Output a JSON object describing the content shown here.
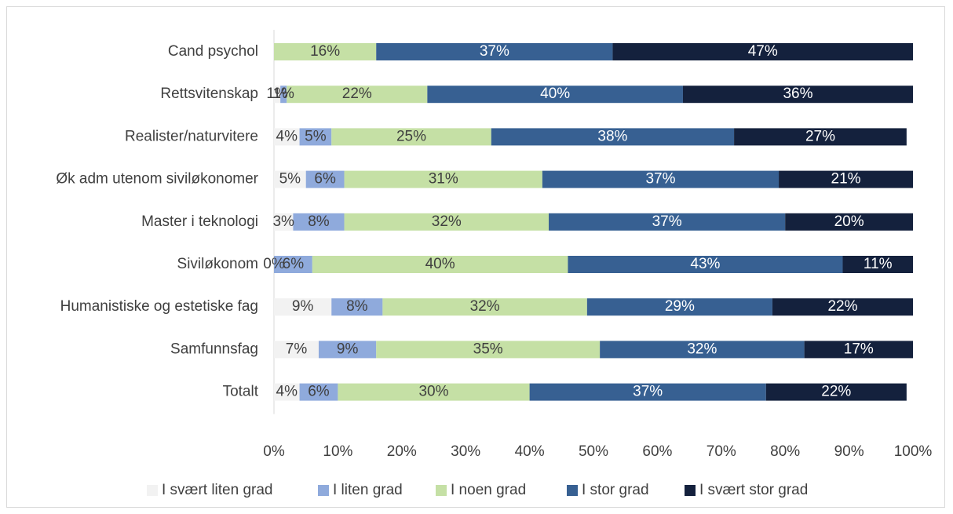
{
  "chart_data": {
    "type": "bar",
    "orientation": "horizontal",
    "stacked": true,
    "percent": true,
    "categories": [
      "Cand psychol",
      "Rettsvitenskap",
      "Realister/naturvitere",
      "Øk adm utenom siviløkonomer",
      "Master i teknologi",
      "Siviløkonom",
      "Humanistiske og estetiske fag",
      "Samfunnsfag",
      "Totalt"
    ],
    "series": [
      {
        "name": "I svært liten grad",
        "color": "#f2f2f2",
        "label_color": "#404040",
        "values": [
          0,
          1,
          4,
          5,
          3,
          0,
          9,
          7,
          4
        ],
        "labels": [
          "",
          "1%",
          "4%",
          "5%",
          "3%",
          "0%",
          "9%",
          "7%",
          "4%"
        ]
      },
      {
        "name": "I liten grad",
        "color": "#8faadc",
        "label_color": "#404040",
        "values": [
          0,
          1,
          5,
          6,
          8,
          6,
          8,
          9,
          6
        ],
        "labels": [
          "",
          "1%",
          "5%",
          "6%",
          "8%",
          "6%",
          "8%",
          "9%",
          "6%"
        ]
      },
      {
        "name": "I noen grad",
        "color": "#c5e0a5",
        "label_color": "#404040",
        "values": [
          16,
          22,
          25,
          31,
          32,
          40,
          32,
          35,
          30
        ],
        "labels": [
          "16%",
          "22%",
          "25%",
          "31%",
          "32%",
          "40%",
          "32%",
          "35%",
          "30%"
        ]
      },
      {
        "name": "I stor grad",
        "color": "#376092",
        "label_color": "#ffffff",
        "values": [
          37,
          40,
          38,
          37,
          37,
          43,
          29,
          32,
          37
        ],
        "labels": [
          "37%",
          "40%",
          "38%",
          "37%",
          "37%",
          "43%",
          "29%",
          "32%",
          "37%"
        ]
      },
      {
        "name": "I svært stor grad",
        "color": "#14213d",
        "label_color": "#ffffff",
        "values": [
          47,
          36,
          27,
          21,
          20,
          11,
          22,
          17,
          22
        ],
        "labels": [
          "47%",
          "36%",
          "27%",
          "21%",
          "20%",
          "11%",
          "22%",
          "17%",
          "22%"
        ]
      }
    ],
    "xlim": [
      0,
      100
    ],
    "ticks": [
      "0%",
      "10%",
      "20%",
      "30%",
      "40%",
      "50%",
      "60%",
      "70%",
      "80%",
      "90%",
      "100%"
    ],
    "grid": false,
    "legend_position": "bottom"
  }
}
